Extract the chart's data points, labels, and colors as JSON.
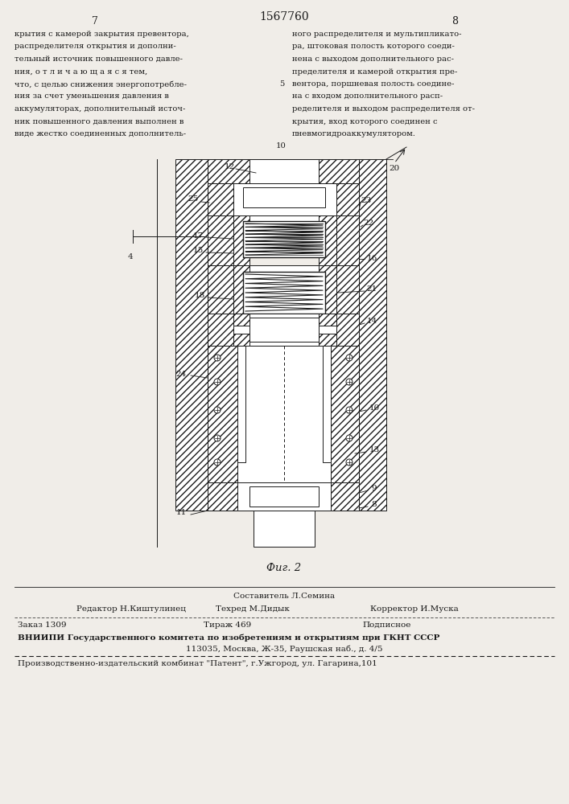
{
  "patent_number": "1567760",
  "page_left": "7",
  "page_right": "8",
  "text_col1_lines": [
    "крытия с камерой закрытия превентора,",
    "распределителя открытия и дополни-",
    "тельный источник повышенного давле-",
    "ния, о т л и ч а ю щ а я с я тем,",
    "что, с целью снижения энергопотребле-",
    "ния за счет уменьшения давления в",
    "аккумуляторах, дополнительный источ-",
    "ник повышенного давления выполнен в",
    "виде жестко соединенных дополнитель-"
  ],
  "text_col2_lines": [
    "ного распределителя и мультипликато-",
    "ра, штоковая полость которого соеди-",
    "нена с выходом дополнительного рас-",
    "пределителя и камерой открытия пре-",
    "вентора, поршневая полость соедине-",
    "на с входом дополнительного расп-",
    "ределителя и выходом распределителя от-",
    "крытия, вход которого соединен с",
    "пневмогидроаккумулятором."
  ],
  "fig_caption": "Фиг. 2",
  "footer_line1_left": "Редактор Н.Киштулинец",
  "footer_line1_center": "Техред М.Дидык",
  "footer_line1_right": "Корректор И.Муска",
  "footer_line2_col1": "Заказ 1309",
  "footer_line2_col2": "Тираж 469",
  "footer_line2_col3": "Подписное",
  "footer_line3": "ВНИИПИ Государственного комитета по изобретениям и открытиям при ГКНТ СССР",
  "footer_line4": "113035, Москва, Ж-35, Раушская наб., д. 4/5",
  "footer_line5": "Производственно-издательский комбинат \"Патент\", г.Ужгород, ул. Гагарина,101",
  "bg_color": "#f0ede8",
  "text_color": "#1a1a1a"
}
